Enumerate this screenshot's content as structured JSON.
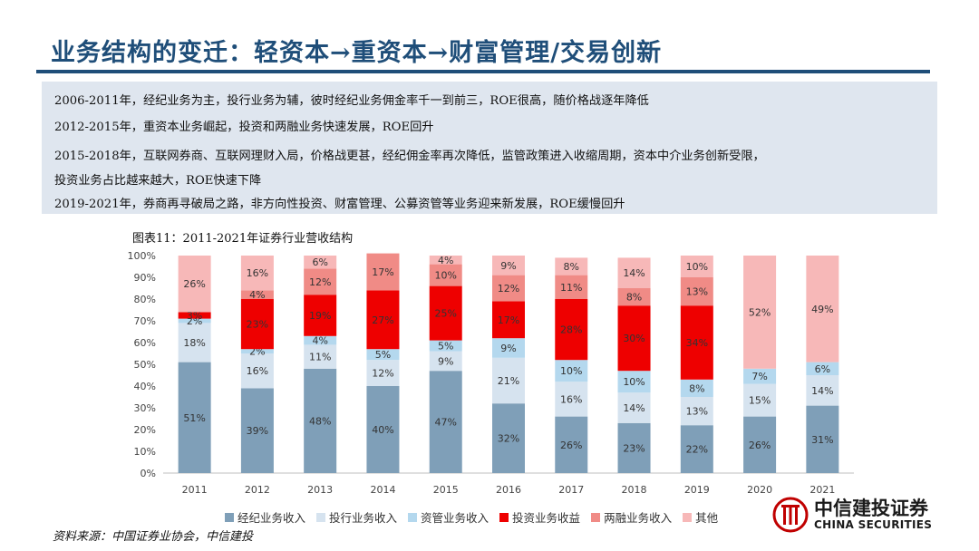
{
  "slide": {
    "title": "业务结构的变迁：轻资本→重资本→财富管理/交易创新",
    "text_lines": [
      "2006-2011年，经纪业务为主，投行业务为辅，彼时经纪业务佣金率千一到前三，ROE很高，随价格战逐年降低",
      "2012-2015年，重资本业务崛起，投资和两融业务快速发展，ROE回升",
      "2015-2018年，互联网券商、互联网理财入局，价格战更甚，经纪佣金率再次降低，监管政策进入收缩周期，资本中介业务创新受限，",
      "投资业务占比越来越大，ROE快速下降",
      "2019-2021年，券商再寻破局之路，非方向性投资、财富管理、公募资管等业务迎来新发展，ROE缓慢回升"
    ],
    "chart_caption": "图表11：2011-2021年证券行业营收结构",
    "source": "资料来源：中国证券业协会，中信建投",
    "logo_cn": "中信建投证券",
    "logo_en": "CHINA SECURITIES",
    "brand_color": "#1f4e79"
  },
  "chart_data": {
    "type": "bar",
    "stacked": true,
    "percent": true,
    "title": "2011-2021年证券行业营收结构",
    "categories": [
      "2011",
      "2012",
      "2013",
      "2014",
      "2015",
      "2016",
      "2017",
      "2018",
      "2019",
      "2020",
      "2021"
    ],
    "y_ticks": [
      "0%",
      "10%",
      "20%",
      "30%",
      "40%",
      "50%",
      "60%",
      "70%",
      "80%",
      "90%",
      "100%"
    ],
    "ylim": [
      0,
      100
    ],
    "series": [
      {
        "name": "经纪业务收入",
        "color": "#7f9fb8",
        "values": [
          51,
          39,
          48,
          40,
          47,
          32,
          26,
          23,
          22,
          26,
          31
        ],
        "labels": [
          "51%",
          "39%",
          "48%",
          "40%",
          "47%",
          "32%",
          "26%",
          "23%",
          "22%",
          "26%",
          "31%"
        ]
      },
      {
        "name": "投行业务收入",
        "color": "#d6e3ef",
        "values": [
          18,
          16,
          11,
          12,
          9,
          21,
          16,
          14,
          13,
          15,
          14
        ],
        "labels": [
          "18%",
          "16%",
          "11%",
          "12%",
          "9%",
          "21%",
          "16%",
          "14%",
          "13%",
          "15%",
          "14%"
        ]
      },
      {
        "name": "资管业务收入",
        "color": "#b4d8ee",
        "values": [
          2,
          2,
          4,
          5,
          5,
          9,
          10,
          10,
          8,
          7,
          6
        ],
        "labels": [
          "2%",
          "2%",
          "4%",
          "5%",
          "5%",
          "9%",
          "10%",
          "10%",
          "8%",
          "7%",
          "6%"
        ]
      },
      {
        "name": "投资业务收益",
        "color": "#ee0000",
        "values": [
          3,
          23,
          19,
          27,
          25,
          17,
          28,
          30,
          34,
          0,
          0
        ],
        "labels": [
          "3%",
          "23%",
          "19%",
          "27%",
          "25%",
          "17%",
          "28%",
          "30%",
          "34%",
          "",
          ""
        ]
      },
      {
        "name": "两融业务收入",
        "color": "#f08b86",
        "values": [
          0,
          4,
          12,
          17,
          10,
          12,
          11,
          8,
          13,
          0,
          0
        ],
        "labels": [
          "",
          "4%",
          "12%",
          "17%",
          "10%",
          "12%",
          "11%",
          "8%",
          "13%",
          "",
          ""
        ]
      },
      {
        "name": "其他",
        "color": "#f7b8b8",
        "values": [
          26,
          16,
          6,
          0,
          4,
          9,
          8,
          14,
          10,
          52,
          49
        ],
        "labels": [
          "26%",
          "16%",
          "6%",
          "",
          "4%",
          "9%",
          "8%",
          "14%",
          "10%",
          "52%",
          "49%"
        ]
      }
    ]
  }
}
